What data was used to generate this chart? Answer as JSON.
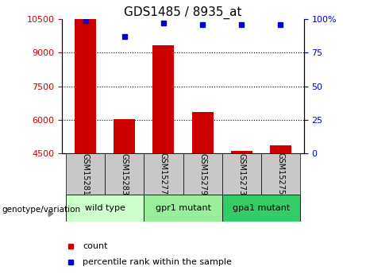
{
  "title": "GDS1485 / 8935_at",
  "samples": [
    "GSM15281",
    "GSM15283",
    "GSM15277",
    "GSM15279",
    "GSM15273",
    "GSM15275"
  ],
  "groups": [
    {
      "label": "wild type",
      "samples": [
        0,
        1
      ],
      "color": "#ccffcc"
    },
    {
      "label": "gpr1 mutant",
      "samples": [
        2,
        3
      ],
      "color": "#99ee99"
    },
    {
      "label": "gpa1 mutant",
      "samples": [
        4,
        5
      ],
      "color": "#33cc66"
    }
  ],
  "counts": [
    10500,
    6050,
    9350,
    6350,
    4600,
    4850
  ],
  "percentile_ranks": [
    99,
    87,
    97,
    96,
    96,
    96
  ],
  "y_min": 4500,
  "y_max": 10500,
  "y_ticks_left": [
    4500,
    6000,
    7500,
    9000,
    10500
  ],
  "y_ticks_right_vals": [
    0,
    25,
    50,
    75,
    100
  ],
  "y_ticks_right_labels": [
    "0",
    "25",
    "50",
    "75",
    "100%"
  ],
  "bar_color": "#cc0000",
  "dot_color": "#0000cc",
  "left_tick_color": "#cc0000",
  "right_tick_color": "#0000cc",
  "title_fontsize": 11,
  "tick_fontsize": 8,
  "sample_label_fontsize": 7,
  "group_label_fontsize": 8,
  "legend_fontsize": 8,
  "group_colors": [
    "#ccffcc",
    "#99ee99",
    "#33cc66"
  ]
}
